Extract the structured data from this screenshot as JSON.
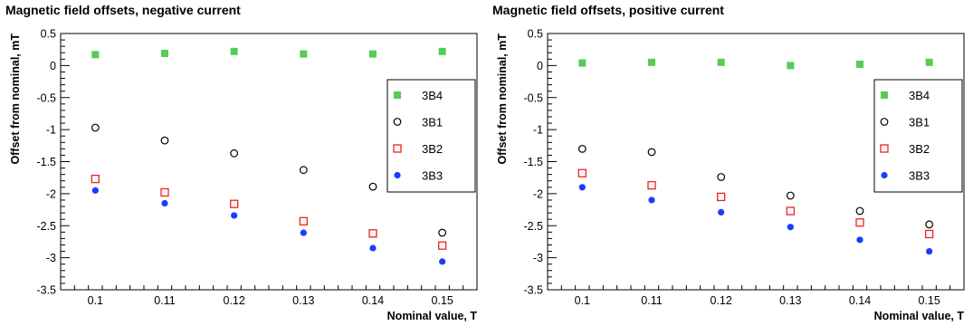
{
  "chart_data": [
    {
      "type": "scatter",
      "title": "Magnetic field offsets, negative current",
      "xlabel": "Nominal value, T",
      "ylabel": "Offset from nominal, mT",
      "xlim": [
        0.095,
        0.155
      ],
      "ylim": [
        -3.5,
        0.5
      ],
      "x_ticks": [
        "0.1",
        "0.11",
        "0.12",
        "0.13",
        "0.14",
        "0.15"
      ],
      "y_ticks": [
        "0.5",
        "0",
        "-0.5",
        "-1",
        "-1.5",
        "-2",
        "-2.5",
        "-3",
        "-3.5"
      ],
      "legend_position": "right",
      "grid": false,
      "series": [
        {
          "name": "3B4",
          "marker": "filled-square",
          "color": "#55cc55",
          "x": [
            0.1,
            0.11,
            0.12,
            0.13,
            0.14,
            0.15
          ],
          "y": [
            0.17,
            0.19,
            0.22,
            0.18,
            0.18,
            0.22
          ]
        },
        {
          "name": "3B1",
          "marker": "open-circle",
          "color": "#000000",
          "x": [
            0.1,
            0.11,
            0.12,
            0.13,
            0.14,
            0.15
          ],
          "y": [
            -0.97,
            -1.17,
            -1.37,
            -1.63,
            -1.89,
            -2.61
          ]
        },
        {
          "name": "3B2",
          "marker": "open-square",
          "color": "#ee2222",
          "x": [
            0.1,
            0.11,
            0.12,
            0.13,
            0.14,
            0.15
          ],
          "y": [
            -1.77,
            -1.98,
            -2.16,
            -2.43,
            -2.62,
            -2.81
          ]
        },
        {
          "name": "3B3",
          "marker": "filled-circle",
          "color": "#1a3cff",
          "x": [
            0.1,
            0.11,
            0.12,
            0.13,
            0.14,
            0.15
          ],
          "y": [
            -1.95,
            -2.15,
            -2.34,
            -2.61,
            -2.85,
            -3.06
          ]
        }
      ]
    },
    {
      "type": "scatter",
      "title": "Magnetic field offsets, positive current",
      "xlabel": "Nominal value, T",
      "ylabel": "Offset from nominal, mT",
      "xlim": [
        0.095,
        0.155
      ],
      "ylim": [
        -3.5,
        0.5
      ],
      "x_ticks": [
        "0.1",
        "0.11",
        "0.12",
        "0.13",
        "0.14",
        "0.15"
      ],
      "y_ticks": [
        "0.5",
        "0",
        "-0.5",
        "-1",
        "-1.5",
        "-2",
        "-2.5",
        "-3",
        "-3.5"
      ],
      "legend_position": "right",
      "grid": false,
      "series": [
        {
          "name": "3B4",
          "marker": "filled-square",
          "color": "#55cc55",
          "x": [
            0.1,
            0.11,
            0.12,
            0.13,
            0.14,
            0.15
          ],
          "y": [
            0.04,
            0.05,
            0.05,
            0.0,
            0.02,
            0.05
          ]
        },
        {
          "name": "3B1",
          "marker": "open-circle",
          "color": "#000000",
          "x": [
            0.1,
            0.11,
            0.12,
            0.13,
            0.14,
            0.15
          ],
          "y": [
            -1.3,
            -1.35,
            -1.74,
            -2.03,
            -2.27,
            -2.48
          ]
        },
        {
          "name": "3B2",
          "marker": "open-square",
          "color": "#ee2222",
          "x": [
            0.1,
            0.11,
            0.12,
            0.13,
            0.14,
            0.15
          ],
          "y": [
            -1.68,
            -1.87,
            -2.05,
            -2.27,
            -2.45,
            -2.63
          ]
        },
        {
          "name": "3B3",
          "marker": "filled-circle",
          "color": "#1a3cff",
          "x": [
            0.1,
            0.11,
            0.12,
            0.13,
            0.14,
            0.15
          ],
          "y": [
            -1.9,
            -2.1,
            -2.29,
            -2.52,
            -2.72,
            -2.9
          ]
        }
      ]
    }
  ]
}
